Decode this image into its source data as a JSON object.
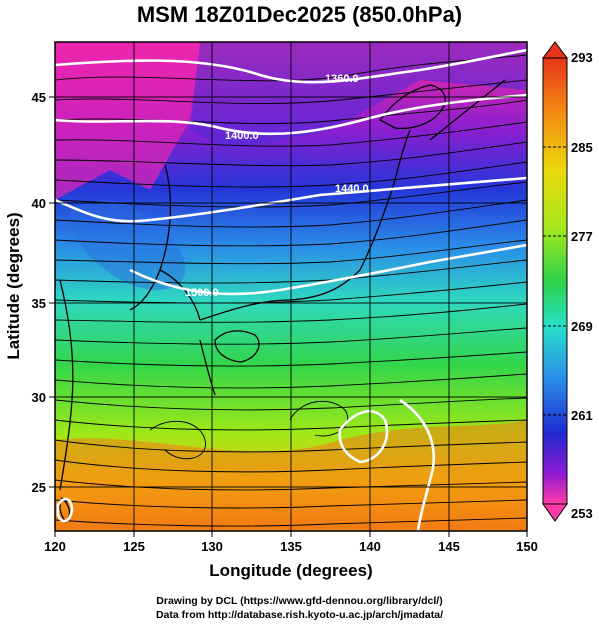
{
  "title": "MSM 18Z01Dec2025 (850.0hPa)",
  "map": {
    "xaxis": {
      "label": "Longitude (degrees)",
      "range": [
        120,
        150
      ],
      "ticks": [
        "120",
        "125",
        "130",
        "135",
        "140",
        "145",
        "150"
      ]
    },
    "yaxis": {
      "label": "Latitude  (degrees)",
      "range": [
        22.4,
        47.6
      ],
      "ticks": [
        "25",
        "30",
        "35",
        "40",
        "45"
      ]
    },
    "contours": [
      {
        "value": 1360,
        "label": "1360.0"
      },
      {
        "value": 1400,
        "label": "1400.0"
      },
      {
        "value": 1440,
        "label": "1440.0"
      },
      {
        "value": 1500,
        "label": "1500.0"
      }
    ],
    "colorbar": {
      "ticks": [
        "293",
        "285",
        "277",
        "269",
        "261",
        "253"
      ],
      "min": 253,
      "max": 293
    }
  },
  "credits": {
    "line1": "Drawing by DCL (https://www.gfd-dennou.org/library/dcl/)",
    "line2": "Data from http://database.rish.kyoto-u.ac.jp/arch/jmadata/"
  }
}
